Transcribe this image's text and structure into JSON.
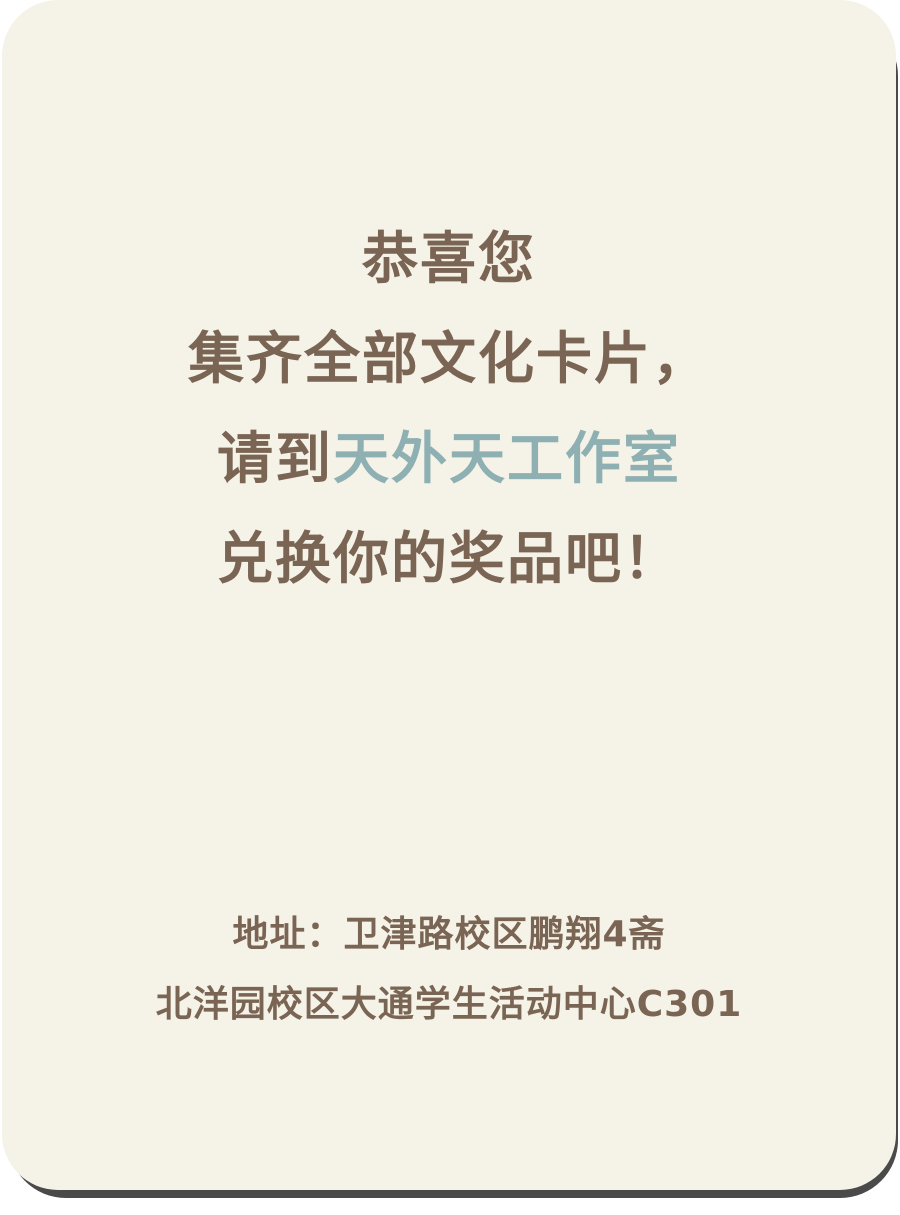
{
  "card": {
    "greeting": "恭喜您",
    "line2": "集齐全部文化卡片，",
    "line3_prefix": "请到",
    "line3_highlight": "天外天工作室",
    "line4": "兑换你的奖品吧！",
    "address_line1": "地址：卫津路校区鹏翔4斋",
    "address_line2": "北洋园校区大通学生活动中心C301",
    "colors": {
      "background": "#f5f2e7",
      "text": "#7a6554",
      "accent": "#8eb0b3",
      "shadow": "#4a4a4a"
    }
  }
}
